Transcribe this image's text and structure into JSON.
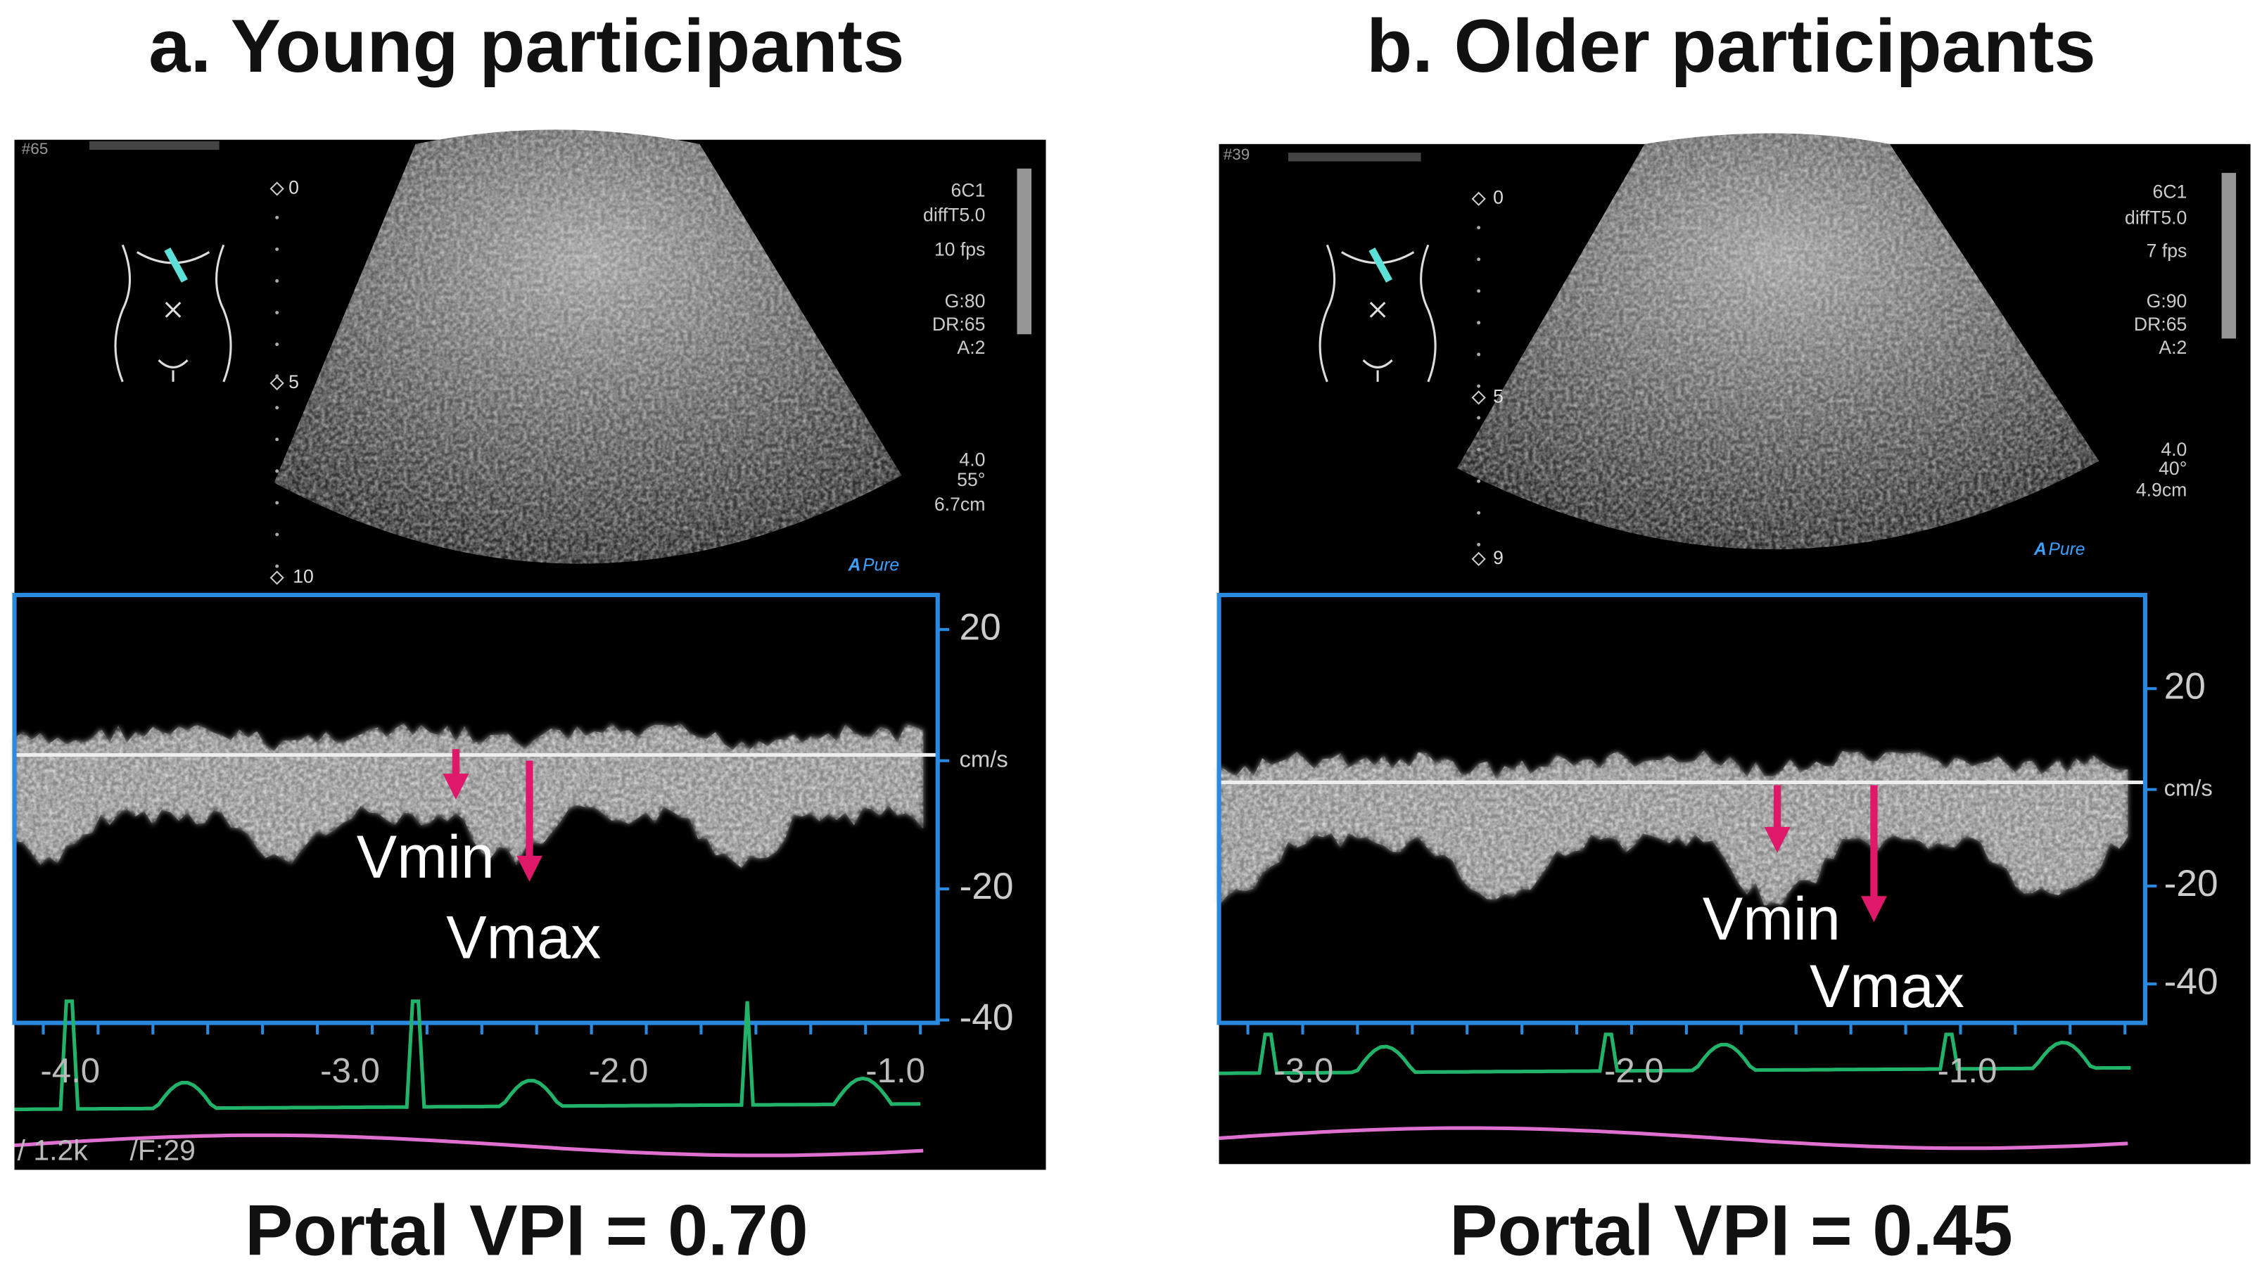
{
  "panels": [
    {
      "title": "a. Young participants",
      "frame_number": "#65",
      "depth_marks": [
        "0",
        "5",
        "10"
      ],
      "settings": [
        "6C1",
        "diffT5.0",
        "10 fps",
        "G:80",
        "DR:65",
        "A:2",
        "4.0",
        "55°",
        "6.7cm"
      ],
      "brand_mark": "A",
      "brand": "Pure",
      "velocity_scale": [
        "20",
        "cm/s",
        "-20",
        "-40"
      ],
      "time_marks": [
        "-4.0",
        "-3.0",
        "-2.0",
        "-1.0"
      ],
      "doppler_settings": [
        "/ 1.2k",
        "/F:29"
      ],
      "vmin_label": "Vmin",
      "vmax_label": "Vmax",
      "result": "Portal VPI = 0.70"
    },
    {
      "title": "b. Older participants",
      "frame_number": "#39",
      "depth_marks": [
        "0",
        "5",
        "9"
      ],
      "settings": [
        "6C1",
        "diffT5.0",
        "7 fps",
        "G:90",
        "DR:65",
        "A:2",
        "4.0",
        "40°",
        "4.9cm"
      ],
      "brand_mark": "A",
      "brand": "Pure",
      "velocity_scale": [
        "20",
        "cm/s",
        "-20",
        "-40"
      ],
      "time_marks": [
        "-3.0",
        "-2.0",
        "-1.0"
      ],
      "vmin_label": "Vmin",
      "vmax_label": "Vmax",
      "result": "Portal VPI = 0.45"
    }
  ]
}
